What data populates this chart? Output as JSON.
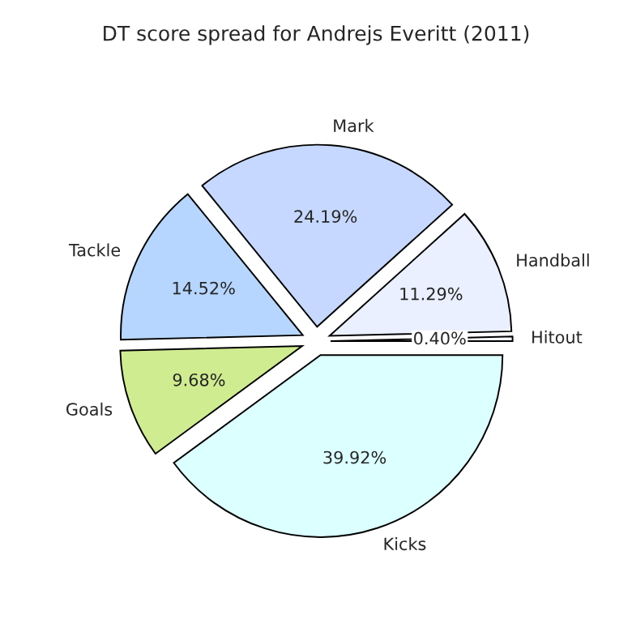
{
  "chart_data": {
    "type": "pie",
    "title": "DT score spread for Andrejs Everitt (2011)",
    "categories": [
      "Hitout",
      "Handball",
      "Mark",
      "Tackle",
      "Goals",
      "Kicks"
    ],
    "values": [
      0.4,
      11.29,
      24.19,
      14.52,
      9.68,
      39.92
    ],
    "value_labels": [
      "0.40%",
      "11.29%",
      "24.19%",
      "14.52%",
      "9.68%",
      "39.92%"
    ],
    "colors": [
      "#f4f8ff",
      "#eaf0ff",
      "#c6d8ff",
      "#b6d6ff",
      "#d0ec90",
      "#dcffff"
    ]
  }
}
